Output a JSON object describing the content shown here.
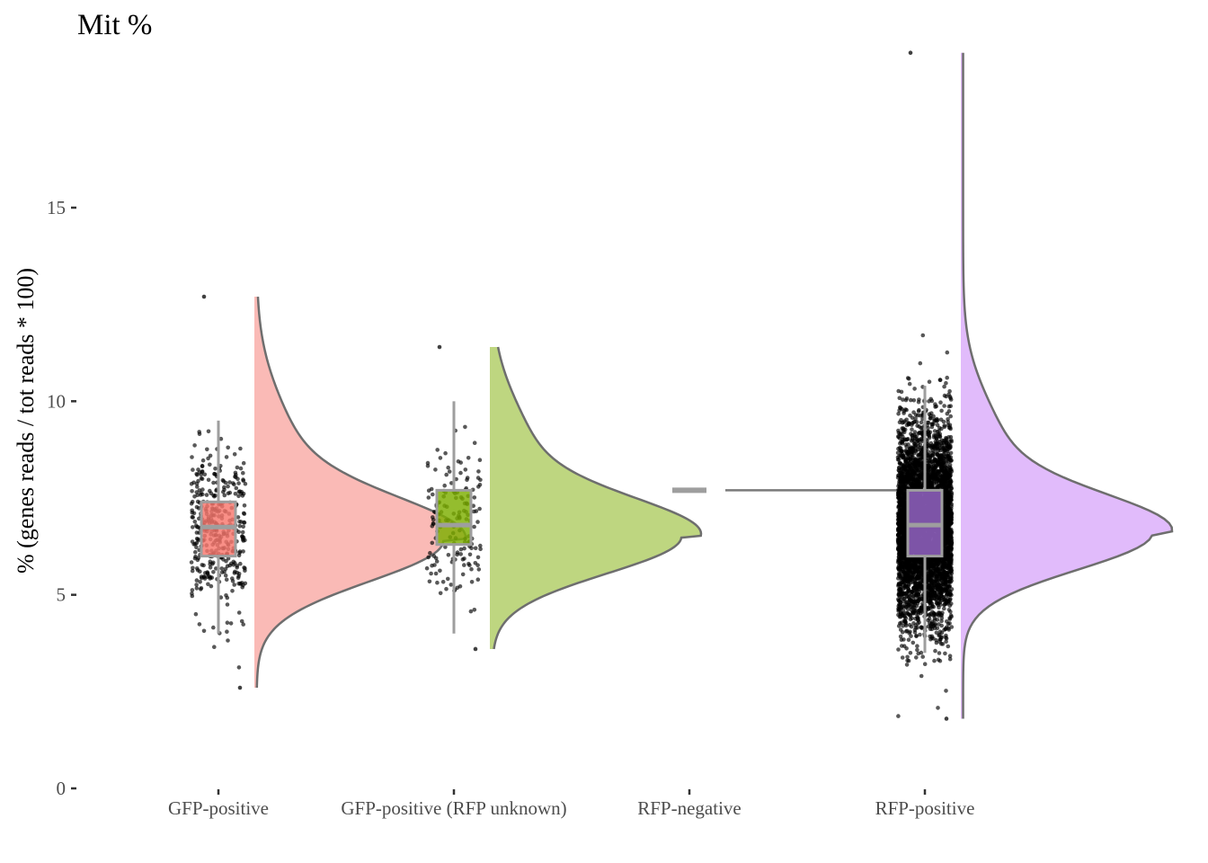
{
  "chart_data": {
    "type": "raincloud",
    "title": "Mit %",
    "xlabel": "",
    "ylabel": "% (genes reads / tot reads * 100)",
    "ylim": [
      0,
      19
    ],
    "yticks": [
      0,
      5,
      10,
      15
    ],
    "grid": false,
    "legend": "none",
    "categories": [
      "GFP-positive",
      "GFP-positive (RFP unknown)",
      "RFP-negative",
      "RFP-positive"
    ],
    "series": [
      {
        "name": "GFP-positive",
        "fill_color": "#F8766D",
        "density_color": "#FABAB6",
        "n_points_approx": 400,
        "min": 2.6,
        "max": 12.7,
        "density_mode": 6.4,
        "density_sd": 1.05,
        "box": {
          "whisker_low": 4.0,
          "q1": 6.0,
          "median": 6.75,
          "q3": 7.4,
          "whisker_high": 9.5
        }
      },
      {
        "name": "GFP-positive (RFP unknown)",
        "fill_color": "#7CAE00",
        "density_color": "#BED680",
        "n_points_approx": 160,
        "min": 3.6,
        "max": 11.4,
        "density_mode": 6.5,
        "density_sd": 0.95,
        "box": {
          "whisker_low": 4.0,
          "q1": 6.3,
          "median": 6.8,
          "q3": 7.7,
          "whisker_high": 10.0
        }
      },
      {
        "name": "RFP-negative",
        "fill_color": "#00BFC4",
        "density_color": "#80DFE2",
        "n_points_approx": 1,
        "min": 7.7,
        "max": 7.7,
        "density_mode": 7.7,
        "density_sd": 0,
        "box": {
          "whisker_low": 7.7,
          "q1": 7.7,
          "median": 7.7,
          "q3": 7.7,
          "whisker_high": 7.7
        }
      },
      {
        "name": "RFP-positive",
        "fill_color": "#9966CC",
        "density_color": "#E1BBFB",
        "n_points_approx": 5000,
        "min": 1.8,
        "max": 19.0,
        "density_mode": 6.6,
        "density_sd": 0.95,
        "box": {
          "whisker_low": 3.5,
          "q1": 6.0,
          "median": 6.8,
          "q3": 7.7,
          "whisker_high": 10.4
        }
      }
    ]
  }
}
